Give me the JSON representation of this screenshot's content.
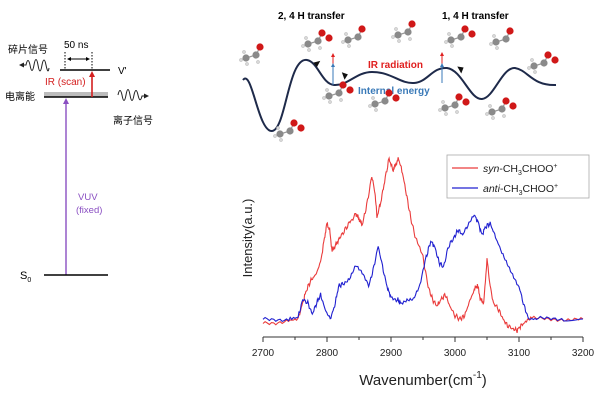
{
  "energy_diagram": {
    "fragment_signal_label": "碎片信号",
    "delay_label": "50 ns",
    "ionization_energy_label": "电离能",
    "ir_label": "IR (scan)",
    "upper_state_label": "V'",
    "ion_signal_label": "离子信号",
    "vuv_label_line1": "VUV",
    "vuv_label_line2": "(fixed)",
    "ground_state_label": "S",
    "ground_state_subscript": "0",
    "colors": {
      "ir": "#d42020",
      "vuv": "#8a4fc2",
      "level": "#000000",
      "ionization_band": "#bcbcbc"
    }
  },
  "pathway_diagram": {
    "left_title": "2, 4 H transfer",
    "right_title": "1, 4 H transfer",
    "ir_label": "IR radiation",
    "internal_energy_label": "Internal energy",
    "colors": {
      "curve": "#1e2a4a",
      "ir": "#e02020",
      "internal": "#3a7ab8",
      "oxygen": "#d01818",
      "carbon": "#8a8a8a",
      "hydrogen": "#d8d8d8"
    }
  },
  "chart_data": {
    "type": "line",
    "title": "",
    "xlabel": "Wavenumber(cm",
    "xlabel_superscript": "-1",
    "xlabel_suffix": ")",
    "ylabel": "Intensity(a.u.)",
    "xlim": [
      2700,
      3200
    ],
    "ylim": [
      -0.1,
      1.05
    ],
    "xticks": [
      2700,
      2800,
      2900,
      3000,
      3100,
      3200
    ],
    "xtick_labels": [
      "2700",
      "2800",
      "2900",
      "3000",
      "3100",
      "3200"
    ],
    "minor_xticks": [
      2750,
      2850,
      2950,
      3050,
      3150
    ],
    "grid": false,
    "legend_position": "top-right",
    "series": [
      {
        "name_prefix": "syn",
        "name_body": "-CH",
        "name_sub": "3",
        "name_tail": "CHOO",
        "name_sup": "+",
        "color": "#ea3c3c",
        "x": [
          2700,
          2720,
          2740,
          2755,
          2762,
          2768,
          2775,
          2782,
          2790,
          2796,
          2800,
          2804,
          2808,
          2814,
          2820,
          2828,
          2836,
          2845,
          2850,
          2855,
          2862,
          2870,
          2875,
          2878,
          2884,
          2890,
          2897,
          2903,
          2907,
          2912,
          2918,
          2925,
          2932,
          2940,
          2950,
          2958,
          2965,
          2972,
          2978,
          2985,
          2992,
          3000,
          3008,
          3015,
          3022,
          3030,
          3035,
          3040,
          3045,
          3050,
          3055,
          3060,
          3068,
          3075,
          3082,
          3090,
          3097,
          3103,
          3110,
          3120,
          3140,
          3160,
          3180,
          3200
        ],
        "y": [
          -0.02,
          -0.02,
          -0.01,
          0.0,
          0.1,
          0.18,
          0.24,
          0.27,
          0.35,
          0.5,
          0.59,
          0.55,
          0.42,
          0.46,
          0.5,
          0.55,
          0.6,
          0.65,
          0.62,
          0.58,
          0.7,
          0.88,
          0.78,
          0.63,
          0.72,
          0.85,
          0.99,
          0.92,
          0.95,
          0.99,
          0.9,
          0.75,
          0.6,
          0.48,
          0.38,
          0.2,
          0.12,
          0.08,
          0.12,
          0.15,
          0.08,
          0.02,
          0.0,
          0.02,
          0.1,
          0.18,
          0.21,
          0.12,
          0.1,
          0.37,
          0.2,
          0.1,
          0.06,
          0.0,
          -0.04,
          -0.06,
          -0.07,
          -0.04,
          -0.02,
          0.0,
          0.0,
          0.0,
          0.0,
          0.0
        ]
      },
      {
        "name_prefix": "anti",
        "name_body": "-CH",
        "name_sub": "3",
        "name_tail": "CHOO",
        "name_sup": "+",
        "color": "#2020d0",
        "x": [
          2700,
          2720,
          2740,
          2755,
          2762,
          2770,
          2777,
          2784,
          2790,
          2797,
          2805,
          2812,
          2818,
          2825,
          2835,
          2845,
          2855,
          2865,
          2872,
          2880,
          2888,
          2895,
          2900,
          2910,
          2915,
          2925,
          2935,
          2945,
          2955,
          2962,
          2968,
          2975,
          2982,
          2990,
          2998,
          3005,
          3012,
          3020,
          3030,
          3036,
          3042,
          3048,
          3055,
          3062,
          3070,
          3080,
          3090,
          3100,
          3108,
          3115,
          3130,
          3150,
          3170,
          3200
        ],
        "y": [
          0.0,
          0.0,
          0.0,
          0.01,
          0.12,
          0.1,
          0.03,
          0.1,
          0.15,
          0.06,
          0.0,
          0.08,
          0.2,
          0.22,
          0.25,
          0.33,
          0.28,
          0.2,
          0.3,
          0.45,
          0.3,
          0.18,
          0.14,
          0.12,
          0.1,
          0.12,
          0.12,
          0.2,
          0.38,
          0.48,
          0.45,
          0.35,
          0.32,
          0.45,
          0.5,
          0.55,
          0.52,
          0.58,
          0.64,
          0.6,
          0.52,
          0.57,
          0.59,
          0.52,
          0.44,
          0.36,
          0.28,
          0.2,
          0.08,
          0.0,
          0.0,
          0.0,
          0.0,
          0.0
        ]
      }
    ]
  }
}
